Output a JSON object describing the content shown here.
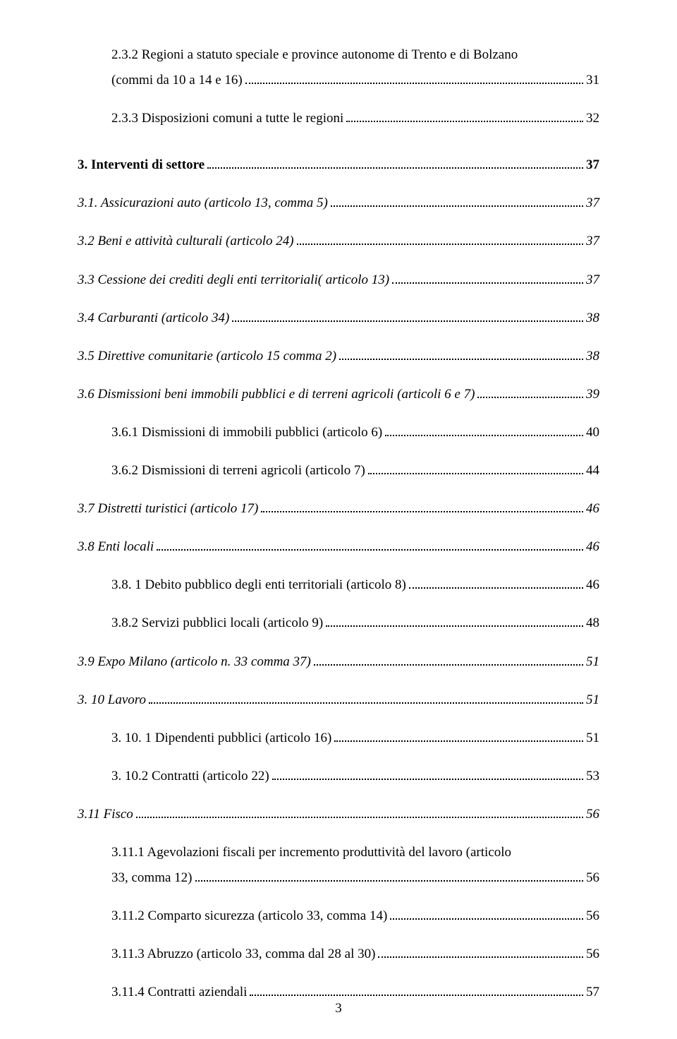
{
  "page_number": "3",
  "entries": [
    {
      "indent": 1,
      "style": "multiline",
      "line1": "2.3.2 Regioni a statuto speciale e province autonome di Trento e di Bolzano",
      "line2": "(commi da 10 a 14 e 16)",
      "page": "31"
    },
    {
      "type": "spacer-s"
    },
    {
      "indent": 1,
      "label": "2.3.3 Disposizioni comuni a tutte le  regioni",
      "page": "32"
    },
    {
      "type": "spacer-m"
    },
    {
      "indent": 0,
      "style": "bold",
      "label": "3. Interventi di settore",
      "page": "37"
    },
    {
      "type": "spacer-s"
    },
    {
      "indent": 0,
      "style": "italic",
      "label": "3.1. Assicurazioni auto (articolo 13, comma 5)",
      "page": "37"
    },
    {
      "type": "spacer-s"
    },
    {
      "indent": 0,
      "style": "italic",
      "label": "3.2 Beni e attività culturali (articolo 24)",
      "page": "37"
    },
    {
      "type": "spacer-s"
    },
    {
      "indent": 0,
      "style": "italic",
      "label": "3.3 Cessione dei crediti degli enti territoriali( articolo 13)",
      "page": "37"
    },
    {
      "type": "spacer-s"
    },
    {
      "indent": 0,
      "style": "italic",
      "label": "3.4 Carburanti (articolo 34)",
      "page": "38"
    },
    {
      "type": "spacer-s"
    },
    {
      "indent": 0,
      "style": "italic",
      "label": "3.5 Direttive comunitarie (articolo 15 comma 2)",
      "page": "38"
    },
    {
      "type": "spacer-s"
    },
    {
      "indent": 0,
      "style": "italic",
      "label": "3.6 Dismissioni beni immobili pubblici e di terreni agricoli (articoli 6 e 7)",
      "page": "39"
    },
    {
      "type": "spacer-s"
    },
    {
      "indent": 1,
      "label": "3.6.1 Dismissioni di immobili pubblici (articolo 6)",
      "page": "40"
    },
    {
      "type": "spacer-s"
    },
    {
      "indent": 1,
      "label": "3.6.2 Dismissioni di terreni agricoli (articolo 7)",
      "page": "44"
    },
    {
      "type": "spacer-s"
    },
    {
      "indent": 0,
      "style": "italic",
      "label": "3.7 Distretti turistici (articolo 17)",
      "page": "46"
    },
    {
      "type": "spacer-s"
    },
    {
      "indent": 0,
      "style": "italic",
      "label": "3.8 Enti locali",
      "page": "46"
    },
    {
      "type": "spacer-s"
    },
    {
      "indent": 1,
      "label": "3.8. 1 Debito pubblico degli enti territoriali (articolo 8)",
      "page": "46"
    },
    {
      "type": "spacer-s"
    },
    {
      "indent": 1,
      "label": "3.8.2 Servizi pubblici locali (articolo 9)",
      "page": "48"
    },
    {
      "type": "spacer-s"
    },
    {
      "indent": 0,
      "style": "italic",
      "label": "3.9 Expo Milano (articolo n. 33 comma 37)",
      "page": "51"
    },
    {
      "type": "spacer-s"
    },
    {
      "indent": 0,
      "style": "italic",
      "label": "3. 10 Lavoro",
      "page": "51"
    },
    {
      "type": "spacer-s"
    },
    {
      "indent": 1,
      "label": "3. 10. 1 Dipendenti pubblici (articolo 16)",
      "page": "51"
    },
    {
      "type": "spacer-s"
    },
    {
      "indent": 1,
      "label": "3. 10.2 Contratti (articolo 22)",
      "page": "53"
    },
    {
      "type": "spacer-s"
    },
    {
      "indent": 0,
      "style": "italic",
      "label": "3.11 Fisco",
      "page": "56"
    },
    {
      "type": "spacer-s"
    },
    {
      "indent": 1,
      "style": "multiline-plain",
      "line1": "3.11.1 Agevolazioni fiscali per incremento produttività del lavoro (articolo",
      "line2": "33, comma 12)",
      "page": "56"
    },
    {
      "type": "spacer-s"
    },
    {
      "indent": 1,
      "label": "3.11.2 Comparto sicurezza (articolo 33, comma 14)",
      "page": "56"
    },
    {
      "type": "spacer-s"
    },
    {
      "indent": 1,
      "label": "3.11.3 Abruzzo (articolo 33, comma dal 28 al 30)",
      "page": "56"
    },
    {
      "type": "spacer-s"
    },
    {
      "indent": 1,
      "label": "3.11.4 Contratti aziendali",
      "page": "57"
    }
  ]
}
